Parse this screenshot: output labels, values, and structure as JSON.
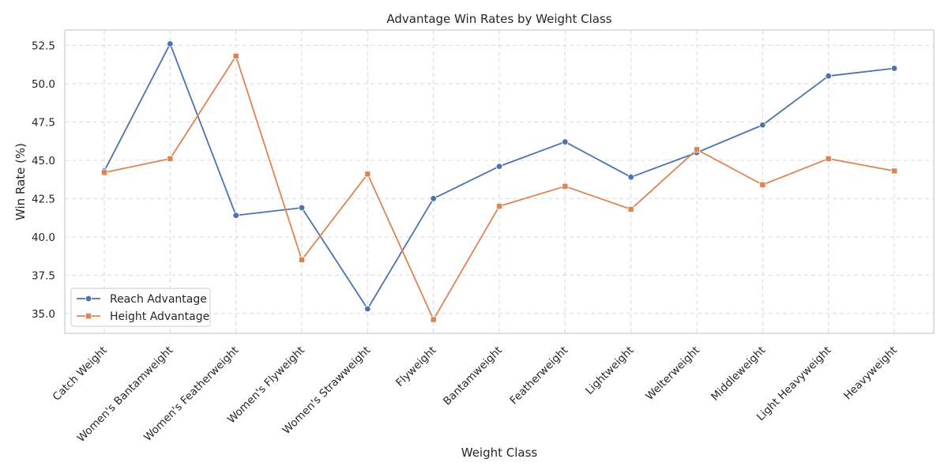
{
  "chart_data": {
    "type": "line",
    "title": "Advantage Win Rates by Weight Class",
    "xlabel": "Weight Class",
    "ylabel": "Win Rate (%)",
    "categories": [
      "Catch Weight",
      "Women's Bantamweight",
      "Women's Featherweight",
      "Women's Flyweight",
      "Women's Strawweight",
      "Flyweight",
      "Bantamweight",
      "Featherweight",
      "Lightweight",
      "Welterweight",
      "Middleweight",
      "Light Heavyweight",
      "Heavyweight"
    ],
    "series": [
      {
        "name": "Reach Advantage",
        "color": "#4c72b0",
        "marker": "circle",
        "values": [
          44.3,
          52.6,
          41.4,
          41.9,
          35.3,
          42.5,
          44.6,
          46.2,
          43.9,
          45.5,
          47.3,
          50.5,
          51.0
        ]
      },
      {
        "name": "Height Advantage",
        "color": "#dd8452",
        "marker": "square",
        "values": [
          44.2,
          45.1,
          51.8,
          38.5,
          44.1,
          34.6,
          42.0,
          43.3,
          41.8,
          45.7,
          43.4,
          45.1,
          44.3
        ]
      }
    ],
    "ylim": [
      33.7,
      53.5
    ],
    "yticks": [
      "35.0",
      "37.5",
      "40.0",
      "42.5",
      "45.0",
      "47.5",
      "50.0",
      "52.5"
    ],
    "grid": true,
    "legend_position": "lower-left"
  }
}
